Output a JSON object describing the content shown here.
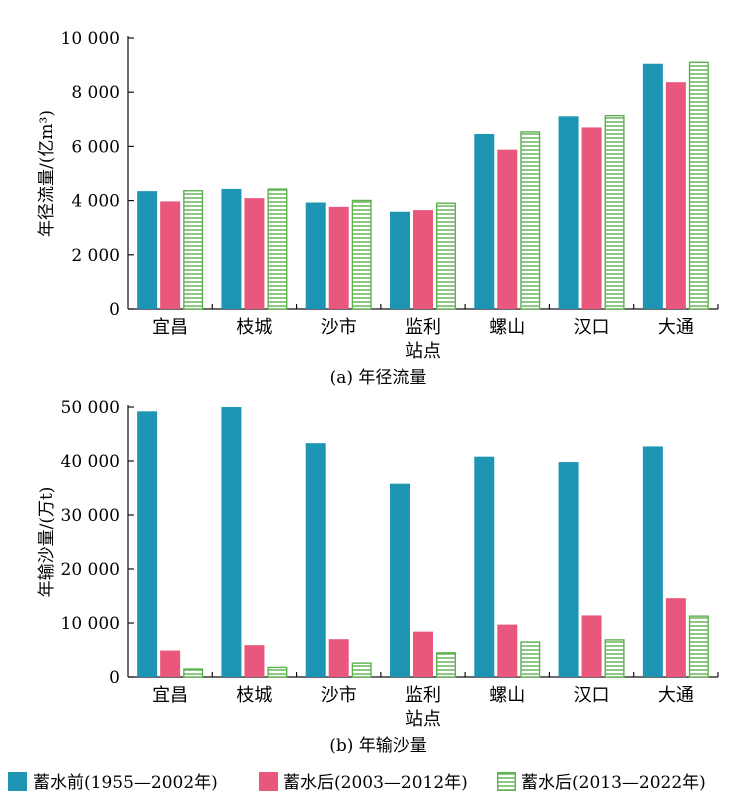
{
  "legend": [
    {
      "label": "蓄水前(1955—2002年)",
      "color": "#1f95b4",
      "pattern": "solid"
    },
    {
      "label": "蓄水后(2003—2012年)",
      "color": "#e9577d",
      "pattern": "solid"
    },
    {
      "label": "蓄水后(2013—2022年)",
      "color": "#5db14f",
      "pattern": "hatched"
    }
  ],
  "chart_data": [
    {
      "type": "bar",
      "caption": "(a) 年径流量",
      "ylabel": "年径流量/(亿m³)",
      "xlabel": "站点",
      "ylim": [
        0,
        10000
      ],
      "yticks": [
        0,
        2000,
        4000,
        6000,
        8000,
        10000
      ],
      "yticklabels": [
        "0",
        "2 000",
        "4 000",
        "6 000",
        "8 000",
        "10 000"
      ],
      "categories": [
        "宜昌",
        "枝城",
        "沙市",
        "监利",
        "螺山",
        "汉口",
        "大通"
      ],
      "series": [
        {
          "name": "蓄水前(1955—2002年)",
          "values": [
            4350,
            4430,
            3930,
            3590,
            6460,
            7110,
            9050
          ]
        },
        {
          "name": "蓄水后(2003—2012年)",
          "values": [
            3970,
            4090,
            3770,
            3650,
            5880,
            6700,
            8370
          ]
        },
        {
          "name": "蓄水后(2013—2022年)",
          "values": [
            4390,
            4450,
            4030,
            3930,
            6560,
            7160,
            9130
          ]
        }
      ]
    },
    {
      "type": "bar",
      "caption": "(b) 年输沙量",
      "ylabel": "年输沙量/(万t)",
      "xlabel": "站点",
      "ylim": [
        0,
        50000
      ],
      "yticks": [
        0,
        10000,
        20000,
        30000,
        40000,
        50000
      ],
      "yticklabels": [
        "0",
        "10 000",
        "20 000",
        "30 000",
        "40 000",
        "50 000"
      ],
      "categories": [
        "宜昌",
        "枝城",
        "沙市",
        "监利",
        "螺山",
        "汉口",
        "大通"
      ],
      "series": [
        {
          "name": "蓄水前(1955—2002年)",
          "values": [
            49200,
            50000,
            43300,
            35800,
            40800,
            39800,
            42700
          ]
        },
        {
          "name": "蓄水后(2003—2012年)",
          "values": [
            4900,
            5900,
            7000,
            8400,
            9700,
            11400,
            14600
          ]
        },
        {
          "name": "蓄水后(2013—2022年)",
          "values": [
            1600,
            1900,
            2700,
            4600,
            6600,
            7000,
            11400
          ]
        }
      ]
    }
  ]
}
